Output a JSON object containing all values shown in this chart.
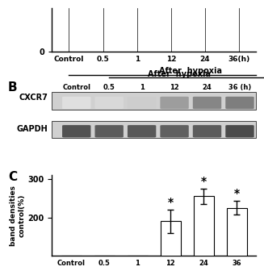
{
  "panel_B": {
    "title": "After  hypoxia",
    "col_labels": [
      "Control",
      "0.5",
      "1",
      "12",
      "24",
      "36 (h)"
    ],
    "row_labels": [
      "CXCR7",
      "GAPDH"
    ],
    "cxcr7_intensities": [
      0.18,
      0.22,
      0.28,
      0.55,
      0.68,
      0.72
    ],
    "gapdh_intensities": [
      0.85,
      0.8,
      0.82,
      0.78,
      0.8,
      0.88
    ],
    "band_color_cxcr7": "#888888",
    "band_color_gapdh": "#444444",
    "bg_color": "#c8c8c8"
  },
  "panel_C": {
    "categories": [
      "Control",
      "0.5",
      "1",
      "12",
      "24",
      "36"
    ],
    "values": [
      100,
      100,
      100,
      190,
      255,
      225
    ],
    "errors": [
      0,
      0,
      0,
      30,
      20,
      18
    ],
    "significant": [
      false,
      false,
      false,
      true,
      true,
      true
    ],
    "ylabel": "band densities\ncontrol(%)",
    "ylim": [
      100,
      310
    ],
    "yticks": [
      200,
      300
    ],
    "bar_color": "#ffffff",
    "bar_edgecolor": "#000000",
    "bar_width": 0.6
  }
}
